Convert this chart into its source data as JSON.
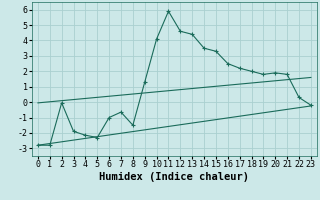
{
  "xlabel": "Humidex (Indice chaleur)",
  "bg_color": "#cce8e8",
  "grid_color": "#aad0d0",
  "line_color": "#1a6b5a",
  "xlim": [
    -0.5,
    23.5
  ],
  "ylim": [
    -3.5,
    6.5
  ],
  "xticks": [
    0,
    1,
    2,
    3,
    4,
    5,
    6,
    7,
    8,
    9,
    10,
    11,
    12,
    13,
    14,
    15,
    16,
    17,
    18,
    19,
    20,
    21,
    22,
    23
  ],
  "yticks": [
    -3,
    -2,
    -1,
    0,
    1,
    2,
    3,
    4,
    5,
    6
  ],
  "curve1_x": [
    0,
    1,
    2,
    3,
    4,
    5,
    6,
    7,
    8,
    9,
    10,
    11,
    12,
    13,
    14,
    15,
    16,
    17,
    18,
    19,
    20,
    21,
    22,
    23
  ],
  "curve1_y": [
    -2.8,
    -2.8,
    -0.05,
    -1.9,
    -2.15,
    -2.3,
    -1.0,
    -0.65,
    -1.5,
    1.3,
    4.1,
    5.9,
    4.6,
    4.4,
    3.5,
    3.3,
    2.5,
    2.2,
    2.0,
    1.8,
    1.9,
    1.8,
    0.3,
    -0.2
  ],
  "curve2_x": [
    0,
    23
  ],
  "curve2_y": [
    -0.05,
    1.6
  ],
  "curve3_x": [
    0,
    23
  ],
  "curve3_y": [
    -2.8,
    -0.25
  ],
  "xlabel_fontsize": 7.5,
  "tick_fontsize": 6.0
}
